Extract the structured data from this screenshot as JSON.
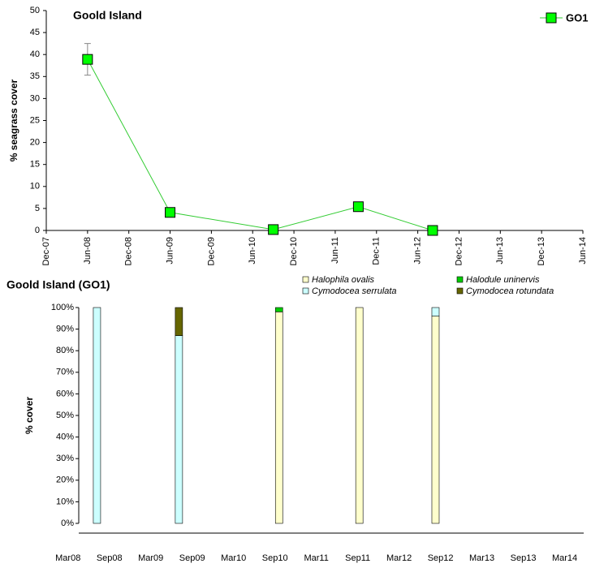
{
  "chart_data": [
    {
      "type": "line",
      "title": "Goold Island",
      "y_label": "% seagrass cover",
      "x": [
        2008.42,
        2009.42,
        2010.67,
        2011.7,
        2012.6
      ],
      "series": [
        {
          "name": "GO1",
          "color": "#00ff00",
          "line_color": "#33cc33",
          "values": [
            38.9,
            4.1,
            0.2,
            5.4,
            0
          ],
          "errors": [
            3.6,
            null,
            null,
            null,
            null
          ]
        }
      ],
      "xlim": [
        2007.92,
        2014.42
      ],
      "xticks": [
        {
          "value": 2007.92,
          "label": "Dec-07"
        },
        {
          "value": 2008.42,
          "label": "Jun-08"
        },
        {
          "value": 2008.92,
          "label": "Dec-08"
        },
        {
          "value": 2009.42,
          "label": "Jun-09"
        },
        {
          "value": 2009.92,
          "label": "Dec-09"
        },
        {
          "value": 2010.42,
          "label": "Jun-10"
        },
        {
          "value": 2010.92,
          "label": "Dec-10"
        },
        {
          "value": 2011.42,
          "label": "Jun-11"
        },
        {
          "value": 2011.92,
          "label": "Dec-11"
        },
        {
          "value": 2012.42,
          "label": "Jun-12"
        },
        {
          "value": 2012.92,
          "label": "Dec-12"
        },
        {
          "value": 2013.42,
          "label": "Jun-13"
        },
        {
          "value": 2013.92,
          "label": "Dec-13"
        },
        {
          "value": 2014.42,
          "label": "Jun-14"
        }
      ],
      "ylim": [
        0,
        50
      ],
      "yticks": [
        0,
        5,
        10,
        15,
        20,
        25,
        30,
        35,
        40,
        45,
        50
      ],
      "legend": "top-right"
    },
    {
      "type": "bar",
      "stacked": true,
      "title": "Goold Island (GO1)",
      "y_label": "% cover",
      "x": [
        2008.52,
        2009.51,
        2010.72,
        2011.69,
        2012.61
      ],
      "series": [
        {
          "name": "Halophila ovalis",
          "color": "#ffffcc",
          "values": [
            0,
            0,
            98,
            100,
            96
          ]
        },
        {
          "name": "Halodule uninervis",
          "color": "#00cc00",
          "values": [
            0,
            0,
            2,
            0,
            0
          ]
        },
        {
          "name": "Cymodocea serrulata",
          "color": "#ccffff",
          "values": [
            100,
            87,
            0,
            0,
            4
          ]
        },
        {
          "name": "Cymodocea rotundata",
          "color": "#666600",
          "values": [
            0,
            13,
            0,
            0,
            0
          ]
        }
      ],
      "xlim": [
        2008.3,
        2014.4
      ],
      "xticks": [
        {
          "value": 2008.17,
          "label": "Mar08"
        },
        {
          "value": 2008.67,
          "label": "Sep08"
        },
        {
          "value": 2009.17,
          "label": "Mar09"
        },
        {
          "value": 2009.67,
          "label": "Sep09"
        },
        {
          "value": 2010.17,
          "label": "Mar10"
        },
        {
          "value": 2010.67,
          "label": "Sep10"
        },
        {
          "value": 2011.17,
          "label": "Mar11"
        },
        {
          "value": 2011.67,
          "label": "Sep11"
        },
        {
          "value": 2012.17,
          "label": "Mar12"
        },
        {
          "value": 2012.67,
          "label": "Sep12"
        },
        {
          "value": 2013.17,
          "label": "Mar13"
        },
        {
          "value": 2013.67,
          "label": "Sep13"
        },
        {
          "value": 2014.17,
          "label": "Mar14"
        }
      ],
      "ylim": [
        0,
        100
      ],
      "yticks": [
        {
          "value": 0,
          "label": "0%"
        },
        {
          "value": 10,
          "label": "10%"
        },
        {
          "value": 20,
          "label": "20%"
        },
        {
          "value": 30,
          "label": "30%"
        },
        {
          "value": 40,
          "label": "40%"
        },
        {
          "value": 50,
          "label": "50%"
        },
        {
          "value": 60,
          "label": "60%"
        },
        {
          "value": 70,
          "label": "70%"
        },
        {
          "value": 80,
          "label": "80%"
        },
        {
          "value": 90,
          "label": "90%"
        },
        {
          "value": 100,
          "label": "100%"
        }
      ],
      "legend": "top-right"
    }
  ]
}
